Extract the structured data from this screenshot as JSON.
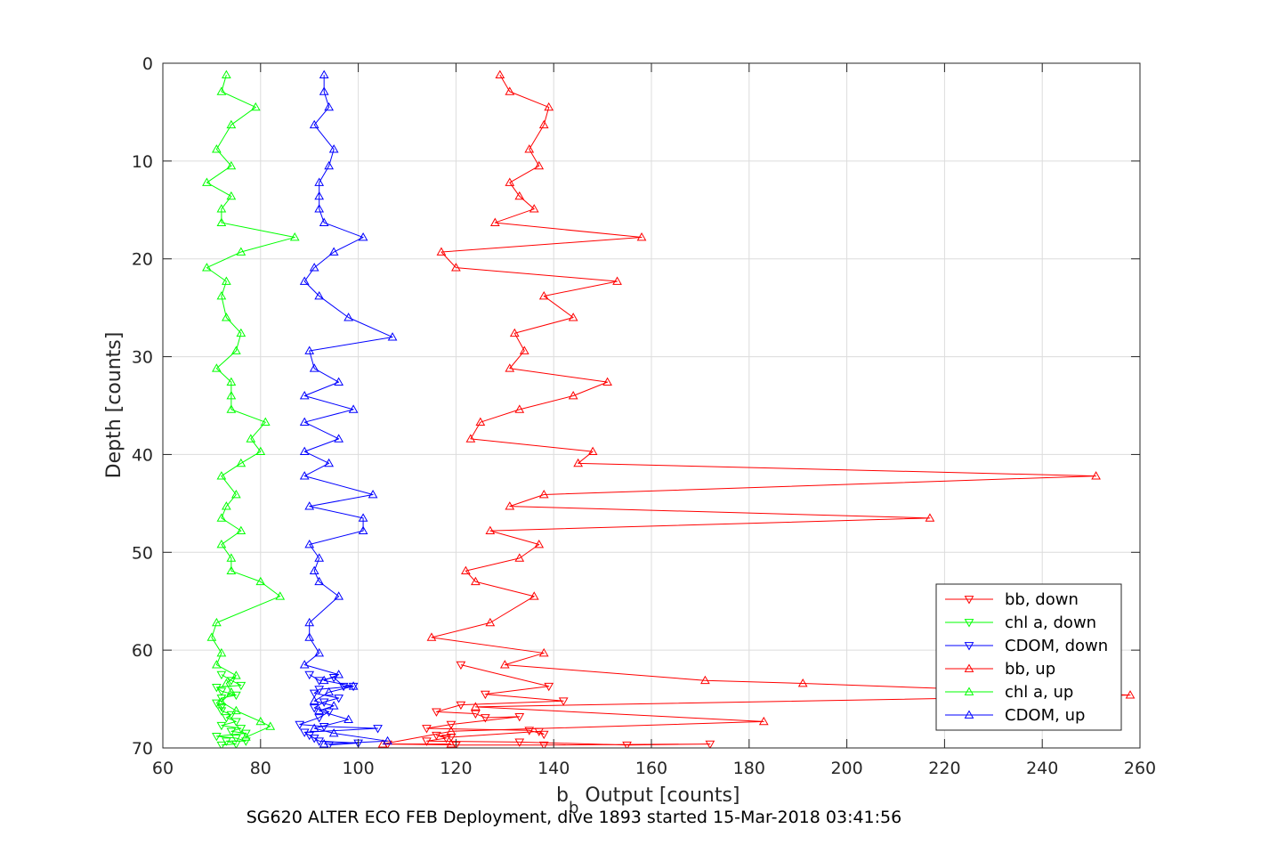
{
  "chart_data": {
    "type": "line",
    "footer_title": "SG620 ALTER ECO FEB Deployment, dive 1893 started 15-Mar-2018 03:41:56",
    "xlabel_main": "b",
    "xlabel_sub": "b",
    "xlabel_rest": " Output [counts]",
    "ylabel": "Depth [counts]",
    "xlim": [
      60,
      260
    ],
    "ylim": [
      0,
      70
    ],
    "y_reversed": true,
    "grid": true,
    "xticks": [
      "60",
      "80",
      "100",
      "120",
      "140",
      "160",
      "180",
      "200",
      "220",
      "240",
      "260"
    ],
    "yticks": [
      "0",
      "10",
      "20",
      "30",
      "40",
      "50",
      "60",
      "70"
    ],
    "legend_position": "bottom-right",
    "colors": {
      "bb": "#ff0000",
      "chl": "#00ff00",
      "cdom": "#0000ff"
    },
    "series": [
      {
        "name": "bb, down",
        "color": "#ff0000",
        "marker": "triangle-down",
        "points": [
          [
            121,
            61.5
          ],
          [
            139,
            63.7
          ],
          [
            126,
            64.5
          ],
          [
            142,
            65.2
          ],
          [
            121,
            65.6
          ],
          [
            116,
            66.3
          ],
          [
            124,
            66.5
          ],
          [
            126,
            66.9
          ],
          [
            133,
            66.8
          ],
          [
            119,
            67.6
          ],
          [
            114,
            68.0
          ],
          [
            135,
            68.2
          ],
          [
            138,
            68.6
          ],
          [
            137,
            68.3
          ],
          [
            119,
            68.9
          ],
          [
            116,
            68.7
          ],
          [
            118,
            69.0
          ],
          [
            114,
            69.3
          ],
          [
            133,
            69.4
          ],
          [
            155,
            69.7
          ],
          [
            172,
            69.6
          ],
          [
            138,
            69.7
          ],
          [
            120,
            69.7
          ],
          [
            106,
            69.6
          ]
        ]
      },
      {
        "name": "chl a, down",
        "color": "#00ff00",
        "marker": "triangle-down",
        "points": [
          [
            72,
            62.5
          ],
          [
            74,
            63.1
          ],
          [
            76,
            63.6
          ],
          [
            71,
            63.8
          ],
          [
            72,
            64.2
          ],
          [
            75,
            64.6
          ],
          [
            72,
            64.9
          ],
          [
            71,
            65.4
          ],
          [
            72,
            65.8
          ],
          [
            72,
            66.2
          ],
          [
            74,
            66.6
          ],
          [
            73,
            66.9
          ],
          [
            75,
            67.3
          ],
          [
            72,
            67.7
          ],
          [
            76,
            68.0
          ],
          [
            74,
            68.3
          ],
          [
            77,
            68.5
          ],
          [
            71,
            68.8
          ],
          [
            75,
            69.0
          ],
          [
            77,
            69.3
          ],
          [
            73,
            69.3
          ],
          [
            75,
            69.6
          ],
          [
            72,
            69.7
          ]
        ]
      },
      {
        "name": "CDOM, down",
        "color": "#0000ff",
        "marker": "triangle-down",
        "points": [
          [
            90,
            62.5
          ],
          [
            92,
            63.1
          ],
          [
            95,
            62.8
          ],
          [
            97,
            63.7
          ],
          [
            99,
            63.7
          ],
          [
            92,
            64.0
          ],
          [
            91,
            64.4
          ],
          [
            96,
            64.9
          ],
          [
            93,
            65.3
          ],
          [
            91,
            65.9
          ],
          [
            94,
            66.3
          ],
          [
            92,
            66.9
          ],
          [
            88,
            67.6
          ],
          [
            93,
            67.8
          ],
          [
            104,
            68.0
          ],
          [
            89,
            68.4
          ],
          [
            90,
            68.7
          ],
          [
            91,
            69.0
          ],
          [
            92,
            69.3
          ],
          [
            100,
            69.5
          ],
          [
            94,
            69.7
          ]
        ]
      },
      {
        "name": "bb, up",
        "color": "#ff0000",
        "marker": "triangle-up",
        "points": [
          [
            129,
            1.2
          ],
          [
            131,
            2.9
          ],
          [
            139,
            4.5
          ],
          [
            138,
            6.3
          ],
          [
            135,
            8.8
          ],
          [
            137,
            10.5
          ],
          [
            131,
            12.2
          ],
          [
            133,
            13.6
          ],
          [
            136,
            14.9
          ],
          [
            128,
            16.3
          ],
          [
            158,
            17.8
          ],
          [
            117,
            19.3
          ],
          [
            120,
            20.9
          ],
          [
            153,
            22.3
          ],
          [
            138,
            23.8
          ],
          [
            144,
            26.0
          ],
          [
            132,
            27.6
          ],
          [
            134,
            29.4
          ],
          [
            131,
            31.2
          ],
          [
            151,
            32.6
          ],
          [
            144,
            34.0
          ],
          [
            133,
            35.4
          ],
          [
            125,
            36.7
          ],
          [
            123,
            38.4
          ],
          [
            148,
            39.7
          ],
          [
            145,
            40.9
          ],
          [
            251,
            42.2
          ],
          [
            138,
            44.1
          ],
          [
            131,
            45.3
          ],
          [
            217,
            46.5
          ],
          [
            127,
            47.8
          ],
          [
            137,
            49.2
          ],
          [
            133,
            50.6
          ],
          [
            122,
            51.9
          ],
          [
            124,
            53.0
          ],
          [
            136,
            54.5
          ],
          [
            127,
            57.2
          ],
          [
            115,
            58.7
          ],
          [
            138,
            60.3
          ],
          [
            130,
            61.5
          ],
          [
            171,
            63.1
          ],
          [
            191,
            63.4
          ],
          [
            258,
            64.6
          ],
          [
            124,
            65.8
          ],
          [
            183,
            67.3
          ],
          [
            119,
            68.3
          ],
          [
            105,
            69.6
          ],
          [
            119,
            69.6
          ]
        ]
      },
      {
        "name": "chl a, up",
        "color": "#00ff00",
        "marker": "triangle-up",
        "points": [
          [
            73,
            1.2
          ],
          [
            72,
            2.9
          ],
          [
            79,
            4.5
          ],
          [
            74,
            6.3
          ],
          [
            71,
            8.8
          ],
          [
            74,
            10.5
          ],
          [
            69,
            12.2
          ],
          [
            74,
            13.6
          ],
          [
            72,
            14.9
          ],
          [
            72,
            16.3
          ],
          [
            87,
            17.8
          ],
          [
            76,
            19.3
          ],
          [
            69,
            20.9
          ],
          [
            73,
            22.3
          ],
          [
            72,
            23.8
          ],
          [
            73,
            26.0
          ],
          [
            76,
            27.6
          ],
          [
            75,
            29.4
          ],
          [
            71,
            31.2
          ],
          [
            74,
            32.6
          ],
          [
            74,
            34.0
          ],
          [
            74,
            35.4
          ],
          [
            81,
            36.7
          ],
          [
            78,
            38.4
          ],
          [
            80,
            39.7
          ],
          [
            76,
            40.9
          ],
          [
            72,
            42.2
          ],
          [
            75,
            44.1
          ],
          [
            73,
            45.3
          ],
          [
            72,
            46.5
          ],
          [
            76,
            47.8
          ],
          [
            72,
            49.2
          ],
          [
            74,
            50.6
          ],
          [
            74,
            51.9
          ],
          [
            80,
            53.0
          ],
          [
            84,
            54.5
          ],
          [
            71,
            57.2
          ],
          [
            70,
            58.7
          ],
          [
            72,
            60.3
          ],
          [
            71,
            61.5
          ],
          [
            75,
            62.6
          ],
          [
            73,
            63.4
          ],
          [
            74,
            64.3
          ],
          [
            72,
            65.3
          ],
          [
            75,
            66.2
          ],
          [
            80,
            67.3
          ],
          [
            82,
            67.8
          ],
          [
            77,
            68.9
          ]
        ]
      },
      {
        "name": "CDOM, up",
        "color": "#0000ff",
        "marker": "triangle-up",
        "points": [
          [
            93,
            1.2
          ],
          [
            93,
            2.9
          ],
          [
            94,
            4.5
          ],
          [
            91,
            6.3
          ],
          [
            95,
            8.8
          ],
          [
            94,
            10.5
          ],
          [
            92,
            12.2
          ],
          [
            92,
            13.6
          ],
          [
            92,
            14.9
          ],
          [
            93,
            16.3
          ],
          [
            101,
            17.8
          ],
          [
            95,
            19.3
          ],
          [
            91,
            20.9
          ],
          [
            89,
            22.3
          ],
          [
            92,
            23.8
          ],
          [
            98,
            26.0
          ],
          [
            107,
            28.0
          ],
          [
            90,
            29.4
          ],
          [
            91,
            31.2
          ],
          [
            96,
            32.6
          ],
          [
            89,
            34.0
          ],
          [
            99,
            35.4
          ],
          [
            89,
            36.7
          ],
          [
            96,
            38.4
          ],
          [
            89,
            39.7
          ],
          [
            94,
            40.9
          ],
          [
            89,
            42.2
          ],
          [
            103,
            44.1
          ],
          [
            90,
            45.3
          ],
          [
            101,
            46.5
          ],
          [
            101,
            47.8
          ],
          [
            90,
            49.2
          ],
          [
            92,
            50.6
          ],
          [
            91,
            51.9
          ],
          [
            92,
            53.0
          ],
          [
            96,
            54.5
          ],
          [
            90,
            57.2
          ],
          [
            90,
            58.7
          ],
          [
            92,
            60.3
          ],
          [
            89,
            61.5
          ],
          [
            96,
            62.5
          ],
          [
            93,
            63.1
          ],
          [
            99,
            63.7
          ],
          [
            94,
            64.3
          ],
          [
            91,
            65.2
          ],
          [
            95,
            65.7
          ],
          [
            92,
            66.2
          ],
          [
            98,
            67.1
          ],
          [
            91,
            68.0
          ],
          [
            95,
            68.5
          ],
          [
            106,
            69.3
          ],
          [
            93,
            69.6
          ]
        ]
      }
    ]
  }
}
